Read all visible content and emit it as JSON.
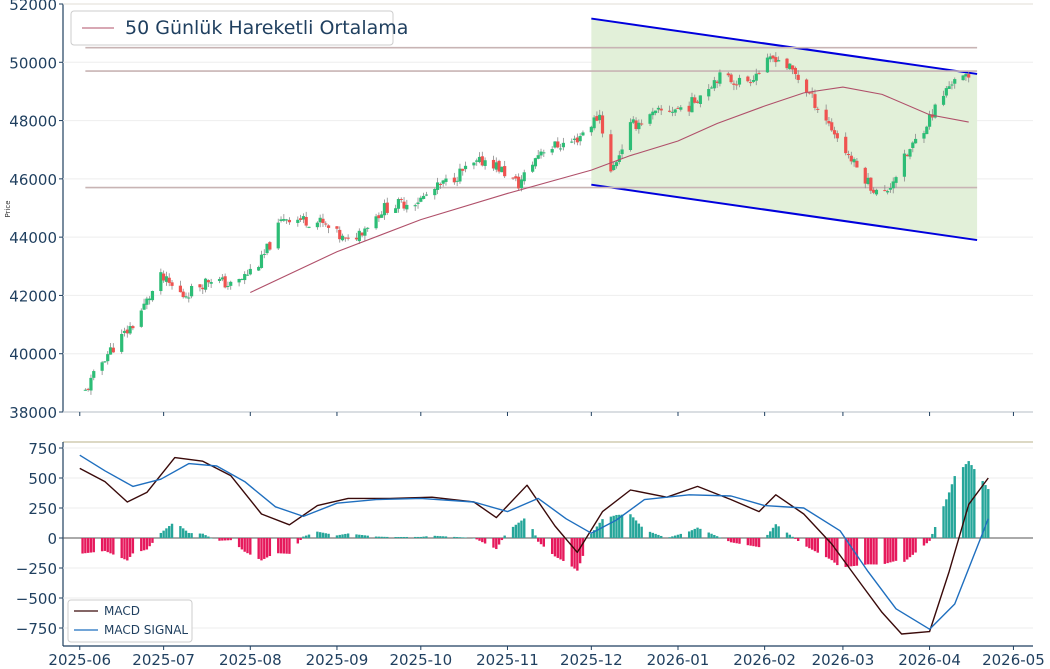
{
  "chart_data": [
    {
      "type": "candlestick",
      "ylabel": "Price",
      "ylim": [
        38000,
        52000
      ],
      "y_ticks": [
        "38000",
        "40000",
        "42000",
        "44000",
        "46000",
        "48000",
        "50000",
        "52000"
      ],
      "legend": {
        "label": "50 Günlük Hareketli Ortalama",
        "placement": "top-left"
      },
      "colors": {
        "up": "#26a69a",
        "up_body": "#2dbd76",
        "down": "#ef5350",
        "ma": "#b0506a",
        "channel_fill": "#e2f0d9",
        "channel_line": "#0000dd",
        "hline": "#c8b4b4"
      },
      "horizontal_levels": [
        50500,
        49700,
        45700
      ],
      "channel": {
        "start": "2025-12-01",
        "end": "2026-04-18",
        "upper": [
          51500,
          49600
        ],
        "lower": [
          45800,
          43900
        ]
      },
      "anchor_points": [
        {
          "date": "2025-06-03",
          "close": 38700
        },
        {
          "date": "2025-06-10",
          "close": 39900
        },
        {
          "date": "2025-06-20",
          "close": 41000
        },
        {
          "date": "2025-06-30",
          "close": 42600
        },
        {
          "date": "2025-07-08",
          "close": 42000
        },
        {
          "date": "2025-07-18",
          "close": 42600
        },
        {
          "date": "2025-07-26",
          "close": 42300
        },
        {
          "date": "2025-08-05",
          "close": 43200
        },
        {
          "date": "2025-08-13",
          "close": 44700
        },
        {
          "date": "2025-08-26",
          "close": 44500
        },
        {
          "date": "2025-09-05",
          "close": 43800
        },
        {
          "date": "2025-09-18",
          "close": 45000
        },
        {
          "date": "2025-10-01",
          "close": 45300
        },
        {
          "date": "2025-10-15",
          "close": 46200
        },
        {
          "date": "2025-10-25",
          "close": 46700
        },
        {
          "date": "2025-11-05",
          "close": 45800
        },
        {
          "date": "2025-11-13",
          "close": 47000
        },
        {
          "date": "2025-11-25",
          "close": 47300
        },
        {
          "date": "2025-12-04",
          "close": 48200
        },
        {
          "date": "2025-12-08",
          "close": 46200
        },
        {
          "date": "2025-12-15",
          "close": 47800
        },
        {
          "date": "2025-12-26",
          "close": 48300
        },
        {
          "date": "2026-01-05",
          "close": 48500
        },
        {
          "date": "2026-01-15",
          "close": 49500
        },
        {
          "date": "2026-01-25",
          "close": 49300
        },
        {
          "date": "2026-02-05",
          "close": 50200
        },
        {
          "date": "2026-02-12",
          "close": 49600
        },
        {
          "date": "2026-02-22",
          "close": 48200
        },
        {
          "date": "2026-03-05",
          "close": 46500
        },
        {
          "date": "2026-03-15",
          "close": 45300
        },
        {
          "date": "2026-03-22",
          "close": 46500
        },
        {
          "date": "2026-04-01",
          "close": 48100
        },
        {
          "date": "2026-04-10",
          "close": 49500
        },
        {
          "date": "2026-04-15",
          "close": 49400
        }
      ],
      "ma_points": [
        {
          "date": "2025-08-01",
          "value": 42100
        },
        {
          "date": "2025-09-01",
          "value": 43500
        },
        {
          "date": "2025-10-01",
          "value": 44600
        },
        {
          "date": "2025-11-01",
          "value": 45500
        },
        {
          "date": "2025-12-01",
          "value": 46300
        },
        {
          "date": "2025-12-15",
          "value": 46800
        },
        {
          "date": "2026-01-01",
          "value": 47300
        },
        {
          "date": "2026-01-15",
          "value": 47900
        },
        {
          "date": "2026-02-01",
          "value": 48500
        },
        {
          "date": "2026-02-15",
          "value": 48950
        },
        {
          "date": "2026-03-01",
          "value": 49150
        },
        {
          "date": "2026-03-15",
          "value": 48900
        },
        {
          "date": "2026-04-01",
          "value": 48200
        },
        {
          "date": "2026-04-15",
          "value": 47950
        }
      ]
    },
    {
      "type": "line",
      "ylim": [
        -900,
        800
      ],
      "y_ticks": [
        "750",
        "500",
        "250",
        "0",
        "−250",
        "−500",
        "−750"
      ],
      "x_ticks": [
        "2025-06",
        "2025-07",
        "2025-08",
        "2025-09",
        "2025-10",
        "2025-11",
        "2025-12",
        "2026-01",
        "2026-02",
        "2026-03",
        "2026-04",
        "2026-05"
      ],
      "legend": {
        "placement": "bottom-left"
      },
      "series": [
        {
          "name": "MACD",
          "color": "#3a0a0a",
          "points": [
            [
              "2025-06-01",
              580
            ],
            [
              "2025-06-10",
              470
            ],
            [
              "2025-06-18",
              300
            ],
            [
              "2025-06-25",
              380
            ],
            [
              "2025-07-05",
              670
            ],
            [
              "2025-07-15",
              640
            ],
            [
              "2025-07-25",
              520
            ],
            [
              "2025-08-05",
              200
            ],
            [
              "2025-08-15",
              110
            ],
            [
              "2025-08-25",
              270
            ],
            [
              "2025-09-05",
              330
            ],
            [
              "2025-09-20",
              330
            ],
            [
              "2025-10-05",
              340
            ],
            [
              "2025-10-20",
              300
            ],
            [
              "2025-10-28",
              170
            ],
            [
              "2025-11-08",
              440
            ],
            [
              "2025-11-18",
              100
            ],
            [
              "2025-11-26",
              -120
            ],
            [
              "2025-12-05",
              220
            ],
            [
              "2025-12-15",
              400
            ],
            [
              "2025-12-28",
              340
            ],
            [
              "2026-01-08",
              430
            ],
            [
              "2026-01-20",
              320
            ],
            [
              "2026-01-30",
              220
            ],
            [
              "2026-02-05",
              360
            ],
            [
              "2026-02-15",
              200
            ],
            [
              "2026-02-25",
              -50
            ],
            [
              "2026-03-08",
              -400
            ],
            [
              "2026-03-15",
              -620
            ],
            [
              "2026-03-22",
              -800
            ],
            [
              "2026-04-01",
              -780
            ],
            [
              "2026-04-08",
              -280
            ],
            [
              "2026-04-15",
              280
            ],
            [
              "2026-04-22",
              500
            ]
          ]
        },
        {
          "name": "MACD SIGNAL",
          "color": "#1f6fbf",
          "points": [
            [
              "2025-06-01",
              690
            ],
            [
              "2025-06-10",
              560
            ],
            [
              "2025-06-20",
              430
            ],
            [
              "2025-06-30",
              490
            ],
            [
              "2025-07-10",
              620
            ],
            [
              "2025-07-20",
              600
            ],
            [
              "2025-07-30",
              470
            ],
            [
              "2025-08-10",
              260
            ],
            [
              "2025-08-20",
              180
            ],
            [
              "2025-09-01",
              290
            ],
            [
              "2025-09-15",
              320
            ],
            [
              "2025-10-01",
              330
            ],
            [
              "2025-10-20",
              300
            ],
            [
              "2025-11-01",
              220
            ],
            [
              "2025-11-12",
              330
            ],
            [
              "2025-11-22",
              160
            ],
            [
              "2025-12-01",
              40
            ],
            [
              "2025-12-10",
              150
            ],
            [
              "2025-12-20",
              320
            ],
            [
              "2026-01-05",
              360
            ],
            [
              "2026-01-20",
              350
            ],
            [
              "2026-02-01",
              270
            ],
            [
              "2026-02-15",
              250
            ],
            [
              "2026-02-28",
              60
            ],
            [
              "2026-03-10",
              -280
            ],
            [
              "2026-03-20",
              -590
            ],
            [
              "2026-04-01",
              -760
            ],
            [
              "2026-04-10",
              -550
            ],
            [
              "2026-04-22",
              160
            ]
          ]
        }
      ],
      "histogram_colors": {
        "positive": "#26a69a",
        "negative": "#e6195c"
      }
    }
  ]
}
